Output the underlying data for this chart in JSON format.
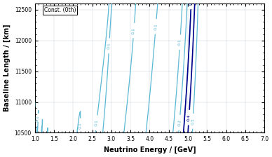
{
  "title": "Const. (0th)",
  "xlabel": "Neutrino Energy / [GeV]",
  "ylabel": "Baseline Length / [km]",
  "xlim": [
    1.0,
    7.0
  ],
  "ylim": [
    10500,
    12600
  ],
  "yticks": [
    10500,
    11000,
    11500,
    12000,
    12500
  ],
  "xticks": [
    1.0,
    1.5,
    2.0,
    2.5,
    3.0,
    3.5,
    4.0,
    4.5,
    5.0,
    5.5,
    6.0,
    6.5,
    7.0
  ],
  "light_blue_color": "#5bb8d4",
  "dark_blue_color": "#00008b",
  "red_dash_color": "#cc1111",
  "background": "#ffffff",
  "grid_color": "#c0c8d0"
}
